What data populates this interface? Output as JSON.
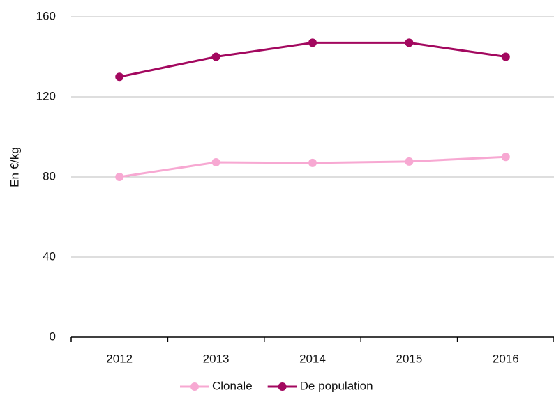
{
  "chart_data": {
    "type": "line",
    "y_label": "En €/kg",
    "categories": [
      "2012",
      "2013",
      "2014",
      "2015",
      "2016"
    ],
    "series": [
      {
        "name": "Clonale",
        "color": "#f7a8d2",
        "values": [
          80,
          87.3,
          87,
          87.7,
          90
        ]
      },
      {
        "name": "De population",
        "color": "#a3085f",
        "values": [
          130,
          140,
          147,
          147,
          140
        ]
      }
    ],
    "ylim": [
      0,
      160
    ],
    "yticks": [
      0,
      40,
      80,
      120,
      160
    ],
    "grid": true,
    "legend": "bottom"
  }
}
